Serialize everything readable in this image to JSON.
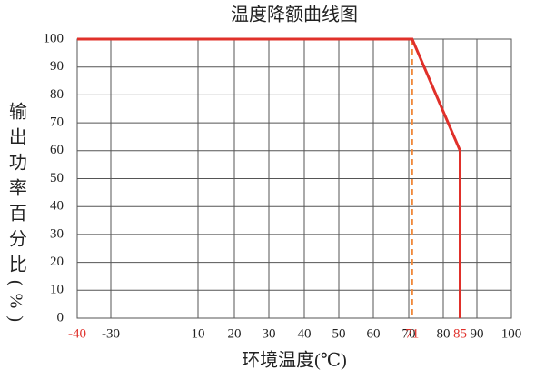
{
  "chart_data": {
    "type": "line",
    "title": "温度降额曲线图",
    "xlabel": "环境温度(℃)",
    "ylabel": "输出功率百分比(%)",
    "series": [
      {
        "name": "降额曲线",
        "color": "#e0302a",
        "x": [
          -40,
          71,
          85,
          85
        ],
        "values": [
          100,
          100,
          60,
          0
        ]
      }
    ],
    "reference_line": {
      "x": 71,
      "color": "#f0883a",
      "style": "dashed"
    },
    "xticks": [
      -40,
      -30,
      10,
      20,
      30,
      40,
      50,
      60,
      70,
      80,
      90,
      100
    ],
    "highlight_x": [
      -40,
      71,
      85
    ],
    "highlight_color": "#e0302a",
    "ylim": [
      0,
      100
    ],
    "yticks": [
      0,
      10,
      20,
      30,
      40,
      50,
      60,
      70,
      80,
      90,
      100
    ],
    "grid": true
  }
}
